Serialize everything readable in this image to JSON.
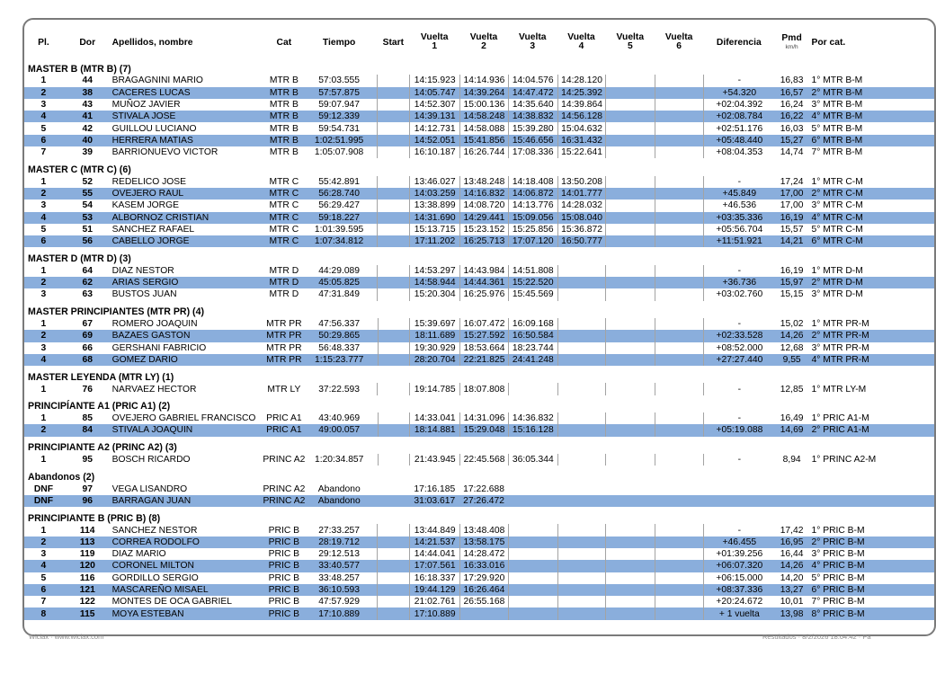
{
  "colors": {
    "row_highlight": "#8AAEDC",
    "table_border": "#7a7a7a"
  },
  "footer": {
    "left": "Wiclax · www.wiclax.com",
    "right": "Resultados · 8/2/2026 18:04:42 · Pa"
  },
  "table": {
    "columns": [
      {
        "key": "pl",
        "label": "Pl."
      },
      {
        "key": "dor",
        "label": "Dor"
      },
      {
        "key": "name",
        "label": "Apellidos, nombre"
      },
      {
        "key": "cat",
        "label": "Cat"
      },
      {
        "key": "tiempo",
        "label": "Tiempo"
      },
      {
        "key": "start",
        "label": "Start"
      },
      {
        "key": "v1",
        "label": "Vuelta",
        "sub": "1"
      },
      {
        "key": "v2",
        "label": "Vuelta",
        "sub": "2"
      },
      {
        "key": "v3",
        "label": "Vuelta",
        "sub": "3"
      },
      {
        "key": "v4",
        "label": "Vuelta",
        "sub": "4"
      },
      {
        "key": "v5",
        "label": "Vuelta",
        "sub": "5"
      },
      {
        "key": "v6",
        "label": "Vuelta",
        "sub": "6"
      },
      {
        "key": "dif",
        "label": "Diferencia"
      },
      {
        "key": "pmd",
        "label": "Pmd",
        "sub": "km/h",
        "subSmall": true
      },
      {
        "key": "por",
        "label": "Por cat."
      }
    ],
    "sections": [
      {
        "title": "MASTER B (MTR B) (7)",
        "rows": [
          {
            "pl": "1",
            "dor": "44",
            "name": "BRAGAGNINI MARIO",
            "cat": "MTR B",
            "tiempo": "57:03.555",
            "laps": [
              "14:15.923",
              "14:14.936",
              "14:04.576",
              "14:28.120"
            ],
            "dif": "-",
            "pmd": "16,83",
            "por": "1° MTR B-M"
          },
          {
            "pl": "2",
            "dor": "38",
            "name": "CACERES LUCAS",
            "cat": "MTR B",
            "tiempo": "57:57.875",
            "laps": [
              "14:05.747",
              "14:39.264",
              "14:47.472",
              "14:25.392"
            ],
            "dif": "+54.320",
            "pmd": "16,57",
            "por": "2° MTR B-M"
          },
          {
            "pl": "3",
            "dor": "43",
            "name": "MUÑOZ JAVIER",
            "cat": "MTR B",
            "tiempo": "59:07.947",
            "laps": [
              "14:52.307",
              "15:00.136",
              "14:35.640",
              "14:39.864"
            ],
            "dif": "+02:04.392",
            "pmd": "16,24",
            "por": "3° MTR B-M"
          },
          {
            "pl": "4",
            "dor": "41",
            "name": "STIVALA JOSE",
            "cat": "MTR B",
            "tiempo": "59:12.339",
            "laps": [
              "14:39.131",
              "14:58.248",
              "14:38.832",
              "14:56.128"
            ],
            "dif": "+02:08.784",
            "pmd": "16,22",
            "por": "4° MTR B-M"
          },
          {
            "pl": "5",
            "dor": "42",
            "name": "GUILLOU LUCIANO",
            "cat": "MTR B",
            "tiempo": "59:54.731",
            "laps": [
              "14:12.731",
              "14:58.088",
              "15:39.280",
              "15:04.632"
            ],
            "dif": "+02:51.176",
            "pmd": "16,03",
            "por": "5° MTR B-M"
          },
          {
            "pl": "6",
            "dor": "40",
            "name": "HERRERA MATIAS",
            "cat": "MTR B",
            "tiempo": "1:02:51.995",
            "laps": [
              "14:52.051",
              "15:41.856",
              "15:46.656",
              "16:31.432"
            ],
            "dif": "+05:48.440",
            "pmd": "15,27",
            "por": "6° MTR B-M"
          },
          {
            "pl": "7",
            "dor": "39",
            "name": "BARRIONUEVO VICTOR",
            "cat": "MTR B",
            "tiempo": "1:05:07.908",
            "laps": [
              "16:10.187",
              "16:26.744",
              "17:08.336",
              "15:22.641"
            ],
            "dif": "+08:04.353",
            "pmd": "14,74",
            "por": "7° MTR B-M"
          }
        ]
      },
      {
        "title": "MASTER C  (MTR C) (6)",
        "rows": [
          {
            "pl": "1",
            "dor": "52",
            "name": "REDELICO JOSE",
            "cat": "MTR C",
            "tiempo": "55:42.891",
            "laps": [
              "13:46.027",
              "13:48.248",
              "14:18.408",
              "13:50.208"
            ],
            "dif": "-",
            "pmd": "17,24",
            "por": "1° MTR C-M"
          },
          {
            "pl": "2",
            "dor": "55",
            "name": "OVEJERO RAUL",
            "cat": "MTR C",
            "tiempo": "56:28.740",
            "laps": [
              "14:03.259",
              "14:16.832",
              "14:06.872",
              "14:01.777"
            ],
            "dif": "+45.849",
            "pmd": "17,00",
            "por": "2° MTR C-M"
          },
          {
            "pl": "3",
            "dor": "54",
            "name": "KASEM JORGE",
            "cat": "MTR C",
            "tiempo": "56:29.427",
            "laps": [
              "13:38.899",
              "14:08.720",
              "14:13.776",
              "14:28.032"
            ],
            "dif": "+46.536",
            "pmd": "17,00",
            "por": "3° MTR C-M"
          },
          {
            "pl": "4",
            "dor": "53",
            "name": "ALBORNOZ CRISTIAN",
            "cat": "MTR C",
            "tiempo": "59:18.227",
            "laps": [
              "14:31.690",
              "14:29.441",
              "15:09.056",
              "15:08.040"
            ],
            "dif": "+03:35.336",
            "pmd": "16,19",
            "por": "4° MTR C-M"
          },
          {
            "pl": "5",
            "dor": "51",
            "name": "SANCHEZ RAFAEL",
            "cat": "MTR C",
            "tiempo": "1:01:39.595",
            "laps": [
              "15:13.715",
              "15:23.152",
              "15:25.856",
              "15:36.872"
            ],
            "dif": "+05:56.704",
            "pmd": "15,57",
            "por": "5° MTR C-M"
          },
          {
            "pl": "6",
            "dor": "56",
            "name": "CABELLO JORGE",
            "cat": "MTR C",
            "tiempo": "1:07:34.812",
            "laps": [
              "17:11.202",
              "16:25.713",
              "17:07.120",
              "16:50.777"
            ],
            "dif": "+11:51.921",
            "pmd": "14,21",
            "por": "6° MTR C-M"
          }
        ]
      },
      {
        "title": "MASTER D (MTR D) (3)",
        "rows": [
          {
            "pl": "1",
            "dor": "64",
            "name": "DIAZ NESTOR",
            "cat": "MTR D",
            "tiempo": "44:29.089",
            "laps": [
              "14:53.297",
              "14:43.984",
              "14:51.808"
            ],
            "dif": "-",
            "pmd": "16,19",
            "por": "1° MTR D-M"
          },
          {
            "pl": "2",
            "dor": "62",
            "name": "ARIAS SERGIO",
            "cat": "MTR D",
            "tiempo": "45:05.825",
            "laps": [
              "14:58.944",
              "14:44.361",
              "15:22.520"
            ],
            "dif": "+36.736",
            "pmd": "15,97",
            "por": "2° MTR D-M"
          },
          {
            "pl": "3",
            "dor": "63",
            "name": "BUSTOS JUAN",
            "cat": "MTR D",
            "tiempo": "47:31.849",
            "laps": [
              "15:20.304",
              "16:25.976",
              "15:45.569"
            ],
            "dif": "+03:02.760",
            "pmd": "15,15",
            "por": "3° MTR D-M"
          }
        ]
      },
      {
        "title": "MASTER PRINCIPIANTES (MTR PR) (4)",
        "rows": [
          {
            "pl": "1",
            "dor": "67",
            "name": "ROMERO JOAQUIN",
            "cat": "MTR PR",
            "tiempo": "47:56.337",
            "laps": [
              "15:39.697",
              "16:07.472",
              "16:09.168"
            ],
            "dif": "-",
            "pmd": "15,02",
            "por": "1° MTR PR-M"
          },
          {
            "pl": "2",
            "dor": "69",
            "name": "BAZAES GASTON",
            "cat": "MTR PR",
            "tiempo": "50:29.865",
            "laps": [
              "18:11.689",
              "15:27.592",
              "16:50.584"
            ],
            "dif": "+02:33.528",
            "pmd": "14,26",
            "por": "2° MTR PR-M"
          },
          {
            "pl": "3",
            "dor": "66",
            "name": "GERSHANI FABRICIO",
            "cat": "MTR PR",
            "tiempo": "56:48.337",
            "laps": [
              "19:30.929",
              "18:53.664",
              "18:23.744"
            ],
            "dif": "+08:52.000",
            "pmd": "12,68",
            "por": "3° MTR PR-M"
          },
          {
            "pl": "4",
            "dor": "68",
            "name": "GOMEZ DARIO",
            "cat": "MTR PR",
            "tiempo": "1:15:23.777",
            "laps": [
              "28:20.704",
              "22:21.825",
              "24:41.248"
            ],
            "dif": "+27:27.440",
            "pmd": "9,55",
            "por": "4° MTR PR-M"
          }
        ]
      },
      {
        "title": "MASTER LEYENDA (MTR LY) (1)",
        "rows": [
          {
            "pl": "1",
            "dor": "76",
            "name": "NARVAEZ HECTOR",
            "cat": "MTR LY",
            "tiempo": "37:22.593",
            "laps": [
              "19:14.785",
              "18:07.808"
            ],
            "dif": "-",
            "pmd": "12,85",
            "por": "1° MTR LY-M"
          }
        ]
      },
      {
        "title": "PRINCIPÍANTE A1  (PRIC A1) (2)",
        "rows": [
          {
            "pl": "1",
            "dor": "85",
            "name": "OVEJERO GABRIEL FRANCISCO",
            "cat": "PRIC A1",
            "tiempo": "43:40.969",
            "laps": [
              "14:33.041",
              "14:31.096",
              "14:36.832"
            ],
            "dif": "-",
            "pmd": "16,49",
            "por": "1° PRIC A1-M"
          },
          {
            "pl": "2",
            "dor": "84",
            "name": "STIVALA JOAQUIN",
            "cat": "PRIC A1",
            "tiempo": "49:00.057",
            "laps": [
              "18:14.881",
              "15:29.048",
              "15:16.128"
            ],
            "dif": "+05:19.088",
            "pmd": "14,69",
            "por": "2° PRIC A1-M"
          }
        ]
      },
      {
        "title": "PRINCIPIANTE A2 (PRINC A2) (3)",
        "rows": [
          {
            "pl": "1",
            "dor": "95",
            "name": "BOSCH RICARDO",
            "cat": "PRINC A2",
            "tiempo": "1:20:34.857",
            "laps": [
              "21:43.945",
              "22:45.568",
              "36:05.344"
            ],
            "dif": "-",
            "pmd": "8,94",
            "por": "1° PRINC A2-M"
          }
        ]
      },
      {
        "title": "Abandonos (2)",
        "rows": [
          {
            "pl": "DNF",
            "dor": "97",
            "name": "VEGA LISANDRO",
            "cat": "PRINC A2",
            "tiempo": "Abandono",
            "laps": [
              "17:16.185",
              "17:22.688"
            ],
            "dif": "",
            "pmd": "",
            "por": ""
          },
          {
            "pl": "DNF",
            "dor": "96",
            "name": "BARRAGAN JUAN",
            "cat": "PRINC A2",
            "tiempo": "Abandono",
            "laps": [
              "31:03.617",
              "27:26.472"
            ],
            "dif": "",
            "pmd": "",
            "por": ""
          }
        ]
      },
      {
        "title": "PRINCIPIANTE B  (PRIC B) (8)",
        "rows": [
          {
            "pl": "1",
            "dor": "114",
            "name": "SANCHEZ NESTOR",
            "cat": "PRIC B",
            "tiempo": "27:33.257",
            "laps": [
              "13:44.849",
              "13:48.408"
            ],
            "dif": "-",
            "pmd": "17,42",
            "por": "1° PRIC B-M"
          },
          {
            "pl": "2",
            "dor": "113",
            "name": "CORREA RODOLFO",
            "cat": "PRIC B",
            "tiempo": "28:19.712",
            "laps": [
              "14:21.537",
              "13:58.175"
            ],
            "dif": "+46.455",
            "pmd": "16,95",
            "por": "2° PRIC B-M"
          },
          {
            "pl": "3",
            "dor": "119",
            "name": "DIAZ MARIO",
            "cat": "PRIC B",
            "tiempo": "29:12.513",
            "laps": [
              "14:44.041",
              "14:28.472"
            ],
            "dif": "+01:39.256",
            "pmd": "16,44",
            "por": "3° PRIC B-M"
          },
          {
            "pl": "4",
            "dor": "120",
            "name": "CORONEL MILTON",
            "cat": "PRIC B",
            "tiempo": "33:40.577",
            "laps": [
              "17:07.561",
              "16:33.016"
            ],
            "dif": "+06:07.320",
            "pmd": "14,26",
            "por": "4° PRIC B-M"
          },
          {
            "pl": "5",
            "dor": "116",
            "name": "GORDILLO SERGIO",
            "cat": "PRIC B",
            "tiempo": "33:48.257",
            "laps": [
              "16:18.337",
              "17:29.920"
            ],
            "dif": "+06:15.000",
            "pmd": "14,20",
            "por": "5° PRIC B-M"
          },
          {
            "pl": "6",
            "dor": "121",
            "name": "MASCAREÑO MISAEL",
            "cat": "PRIC B",
            "tiempo": "36:10.593",
            "laps": [
              "19:44.129",
              "16:26.464"
            ],
            "dif": "+08:37.336",
            "pmd": "13,27",
            "por": "6° PRIC B-M"
          },
          {
            "pl": "7",
            "dor": "122",
            "name": "MONTES DE OCA GABRIEL",
            "cat": "PRIC B",
            "tiempo": "47:57.929",
            "laps": [
              "21:02.761",
              "26:55.168"
            ],
            "dif": "+20:24.672",
            "pmd": "10,01",
            "por": "7° PRIC B-M"
          },
          {
            "pl": "8",
            "dor": "115",
            "name": "MOYA ESTEBAN",
            "cat": "PRIC B",
            "tiempo": "17:10.889",
            "laps": [
              "17:10.889"
            ],
            "dif": "+ 1 vuelta",
            "pmd": "13,98",
            "por": "8° PRIC B-M"
          }
        ]
      }
    ]
  }
}
